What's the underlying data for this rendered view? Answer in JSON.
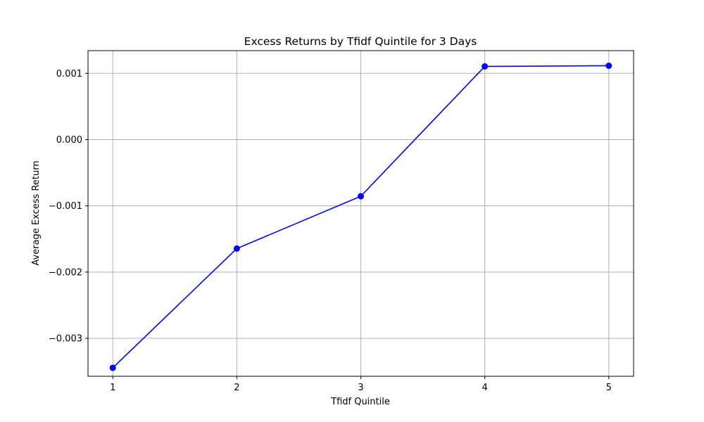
{
  "chart_data": {
    "type": "line",
    "title": "Excess Returns by Tfidf Quintile for 3 Days",
    "xlabel": "Tfidf Quintile",
    "ylabel": "Average Excess Return",
    "x": [
      1,
      2,
      3,
      4,
      5
    ],
    "series": [
      {
        "values": [
          -0.003445,
          -0.001645,
          -0.000855,
          0.001105,
          0.001115
        ],
        "color": "#0000ff",
        "marker": "circle"
      }
    ],
    "xticks": [
      1,
      2,
      3,
      4,
      5
    ],
    "xtick_labels": [
      "1",
      "2",
      "3",
      "4",
      "5"
    ],
    "yticks": [
      -0.003,
      -0.002,
      -0.001,
      0.0,
      0.001
    ],
    "ytick_labels": [
      "−0.003",
      "−0.002",
      "−0.001",
      "0.000",
      "0.001"
    ],
    "xlim": [
      0.8,
      5.2
    ],
    "ylim": [
      -0.003573,
      0.001343
    ],
    "grid": true
  }
}
